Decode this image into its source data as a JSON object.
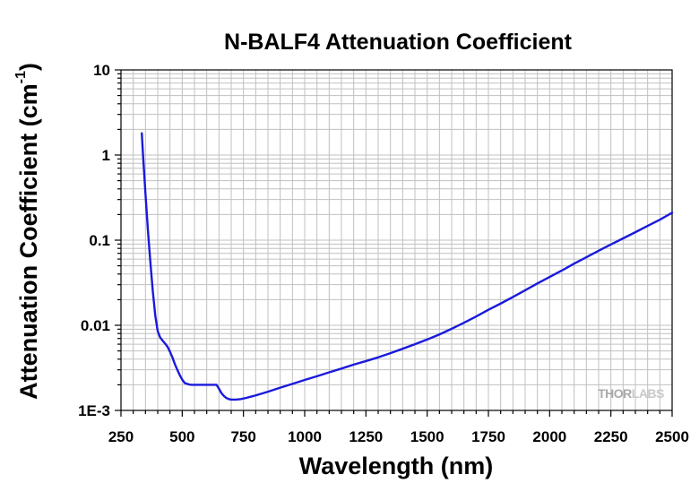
{
  "chart_data": {
    "type": "line",
    "title": "N-BALF4 Attenuation Coefficient",
    "xlabel": "Wavelength (nm)",
    "ylabel": "Attenuation Coefficient (cm",
    "ylabel_superscript": "-1",
    "ylabel_close": ")",
    "xlim": [
      250,
      2500
    ],
    "ylim": [
      0.001,
      10
    ],
    "yscale": "log",
    "grid": true,
    "x_ticks": [
      250,
      500,
      750,
      1000,
      1250,
      1500,
      1750,
      2000,
      2250,
      2500
    ],
    "x_tick_labels": [
      "250",
      "500",
      "750",
      "1000",
      "1250",
      "1500",
      "1750",
      "2000",
      "2250",
      "2500"
    ],
    "y_ticks": [
      0.001,
      0.01,
      0.1,
      1,
      10
    ],
    "y_tick_labels": [
      "1E-3",
      "0.01",
      "0.1",
      "1",
      "10"
    ],
    "line_color": "#1a1adc",
    "series": [
      {
        "x": [
          335,
          340,
          350,
          360,
          370,
          380,
          390,
          400,
          410,
          420,
          430,
          440,
          450,
          460,
          470,
          480,
          490,
          500,
          510,
          520,
          530,
          540,
          550,
          560,
          570,
          580,
          600,
          620,
          640,
          650,
          660,
          670,
          680,
          690,
          700,
          720,
          740,
          760,
          780,
          800,
          850,
          900,
          950,
          1000,
          1050,
          1100,
          1150,
          1200,
          1250,
          1300,
          1350,
          1400,
          1450,
          1500,
          1550,
          1600,
          1650,
          1700,
          1750,
          1800,
          1850,
          1900,
          1950,
          2000,
          2050,
          2100,
          2150,
          2200,
          2250,
          2300,
          2350,
          2400,
          2450,
          2500
        ],
        "values": [
          1.8,
          1.0,
          0.35,
          0.13,
          0.055,
          0.025,
          0.013,
          0.0085,
          0.0072,
          0.0066,
          0.0061,
          0.0056,
          0.0049,
          0.0042,
          0.0035,
          0.003,
          0.0026,
          0.0023,
          0.0021,
          0.00205,
          0.00201,
          0.002,
          0.002,
          0.002,
          0.002,
          0.002,
          0.002,
          0.002,
          0.002,
          0.0018,
          0.0016,
          0.00148,
          0.0014,
          0.00136,
          0.00134,
          0.00134,
          0.00136,
          0.0014,
          0.00145,
          0.0015,
          0.00166,
          0.00185,
          0.00205,
          0.00228,
          0.00252,
          0.0028,
          0.0031,
          0.00345,
          0.0038,
          0.0042,
          0.0047,
          0.0053,
          0.006,
          0.0068,
          0.0078,
          0.0091,
          0.0107,
          0.0127,
          0.0152,
          0.018,
          0.0215,
          0.0258,
          0.031,
          0.037,
          0.044,
          0.053,
          0.063,
          0.075,
          0.089,
          0.105,
          0.124,
          0.147,
          0.174,
          0.21
        ]
      }
    ]
  },
  "watermark": {
    "part1": "THOR",
    "part2": "LABS",
    "color1": "#a9a9a9",
    "color2": "#c9c9c9"
  }
}
